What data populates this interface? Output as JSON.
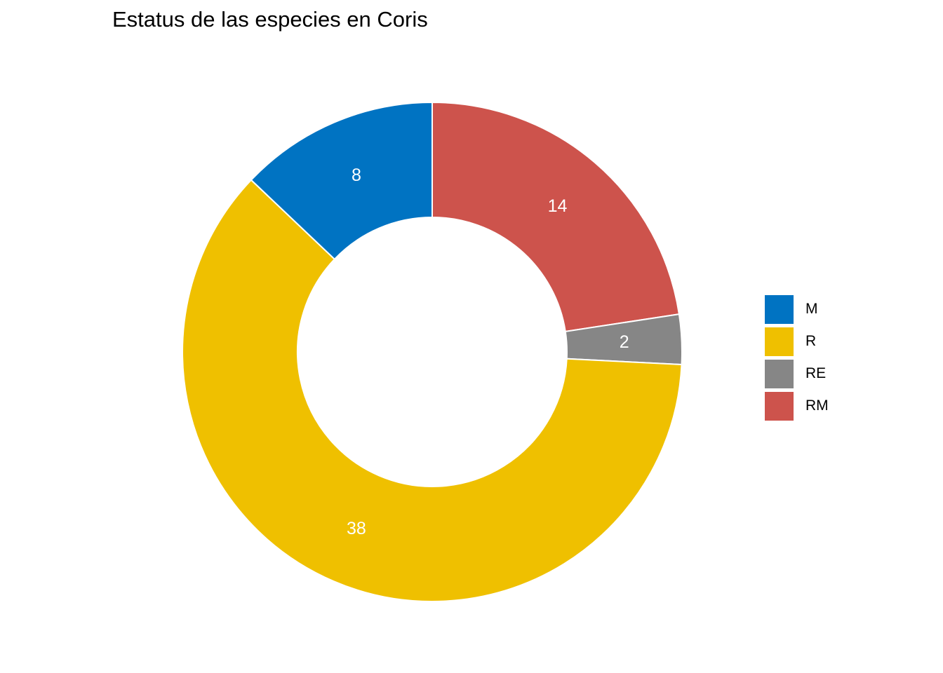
{
  "chart_data": {
    "type": "pie",
    "title": "Estatus de las especies en Coris",
    "donut": true,
    "legend_position": "right",
    "slices": [
      {
        "label": "RM",
        "value": 14,
        "color": "#CD534C"
      },
      {
        "label": "RE",
        "value": 2,
        "color": "#868686"
      },
      {
        "label": "R",
        "value": 38,
        "color": "#EFC000"
      },
      {
        "label": "M",
        "value": 8,
        "color": "#0073C2"
      }
    ],
    "legend": [
      {
        "label": "M",
        "color": "#0073C2"
      },
      {
        "label": "R",
        "color": "#EFC000"
      },
      {
        "label": "RE",
        "color": "#868686"
      },
      {
        "label": "RM",
        "color": "#CD534C"
      }
    ]
  }
}
